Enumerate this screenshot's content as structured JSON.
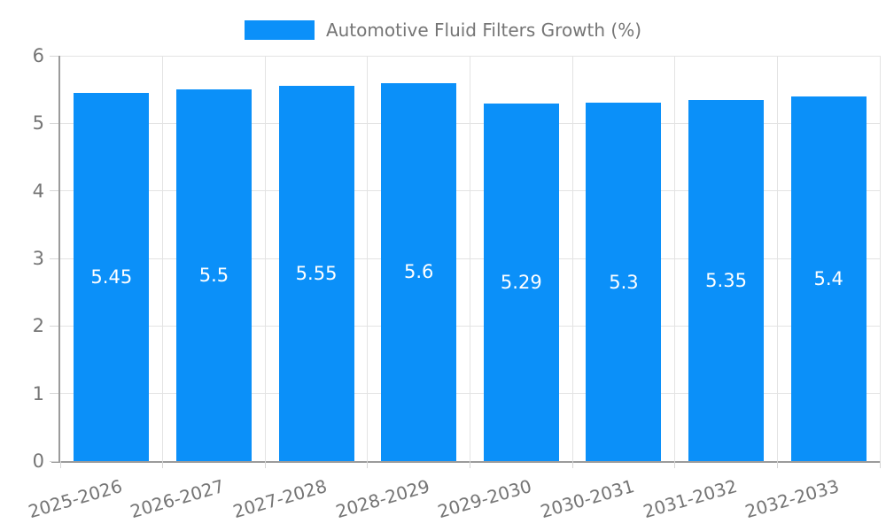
{
  "legend": {
    "label": "Automotive Fluid Filters Growth (%)"
  },
  "chart_data": {
    "type": "bar",
    "title": "Automotive Fluid Filters Growth (%)",
    "categories": [
      "2025-2026",
      "2026-2027",
      "2027-2028",
      "2028-2029",
      "2029-2030",
      "2030-2031",
      "2031-2032",
      "2032-2033"
    ],
    "series": [
      {
        "name": "Automotive Fluid Filters Growth (%)",
        "values": [
          5.45,
          5.5,
          5.55,
          5.6,
          5.29,
          5.3,
          5.35,
          5.4
        ]
      }
    ],
    "value_labels": [
      "5.45",
      "5.5",
      "5.55",
      "5.6",
      "5.29",
      "5.3",
      "5.35",
      "5.4"
    ],
    "xlabel": "",
    "ylabel": "",
    "ylim": [
      0,
      6
    ],
    "yticks": [
      0,
      1,
      2,
      3,
      4,
      5,
      6
    ],
    "ytick_labels": [
      "0",
      "1",
      "2",
      "3",
      "4",
      "5",
      "6"
    ],
    "grid": true,
    "legend_position": "top",
    "value_labels_position": "center",
    "colors": {
      "bar": "#0b90f9",
      "grid": "#e3e3e3",
      "axis": "#9b9b9b",
      "tick": "#d6d6d6",
      "text": "#757575",
      "value_label": "#ffffff",
      "background": "#ffffff"
    }
  }
}
